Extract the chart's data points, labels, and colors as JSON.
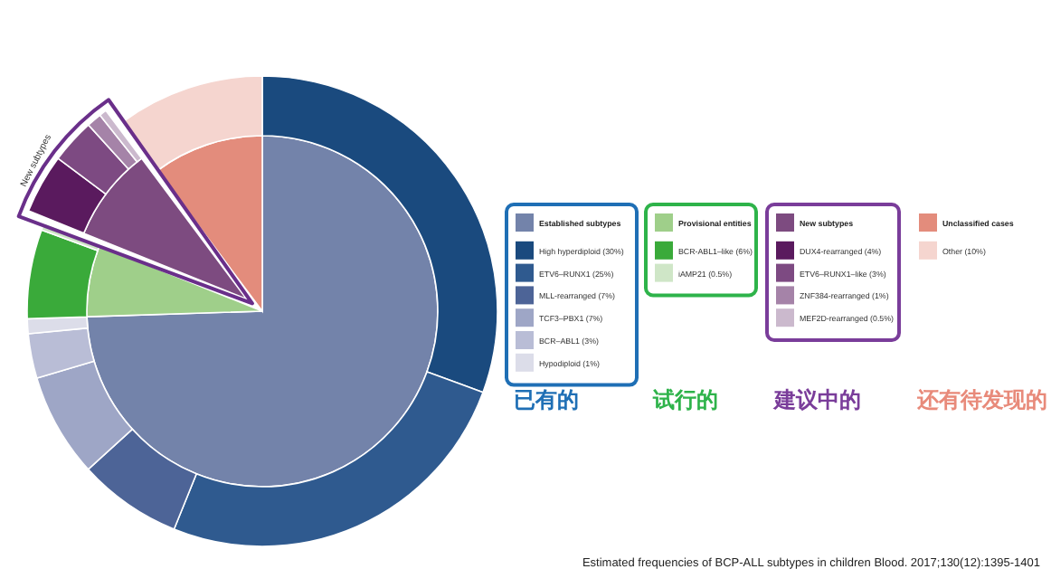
{
  "chart_data": [
    {
      "type": "pie",
      "categories": [
        "Established subtypes",
        "Provisional entities",
        "New subtypes",
        "Unclassified cases"
      ],
      "values": [
        74.5,
        6.6,
        8.7,
        10.2
      ],
      "colors": [
        "#7383aa",
        "#9fcf8a",
        "#7d4b80",
        "#e38c7c"
      ],
      "legend": "right",
      "annotations": [
        "已有的",
        "试行的",
        "建议中的",
        "还有待发现的",
        "Estimated frequencies of BCP-ALL subtypes in children   Blood. 2017;130(12):1395-1401"
      ]
    },
    {
      "type": "donut",
      "categories": [
        "High hyperdiploid (30%)",
        "ETV6–RUNX1 (25%)",
        "MLL-rearranged (7%)",
        "TCF3–PBX1 (7%)",
        "BCR–ABL1 (3%)",
        "Hypodiploid (1%)",
        "BCR-ABL1–like (6%)",
        "iAMP21 (0.5%)",
        "DUX4-rearranged (4%)",
        "ETV6–RUNX1–like (3%)",
        "ZNF384-rearranged (1%)",
        "MEF2D-rearranged (0.5%)",
        "Other (10%)"
      ],
      "values": [
        30,
        25,
        7,
        7,
        3,
        1,
        6,
        0.5,
        4,
        3,
        1,
        0.5,
        10
      ],
      "colors": [
        "#1a4a7e",
        "#2f5a8f",
        "#4d6497",
        "#9ea6c6",
        "#b9bdd6",
        "#dcdde9",
        "#3aaa3a",
        "#cfe6c7",
        "#5a1a5e",
        "#7d4a82",
        "#a583a8",
        "#cbb9cd",
        "#f5d5cf"
      ],
      "legend": "right",
      "annotations": [
        "New subtypes"
      ]
    }
  ]
}
